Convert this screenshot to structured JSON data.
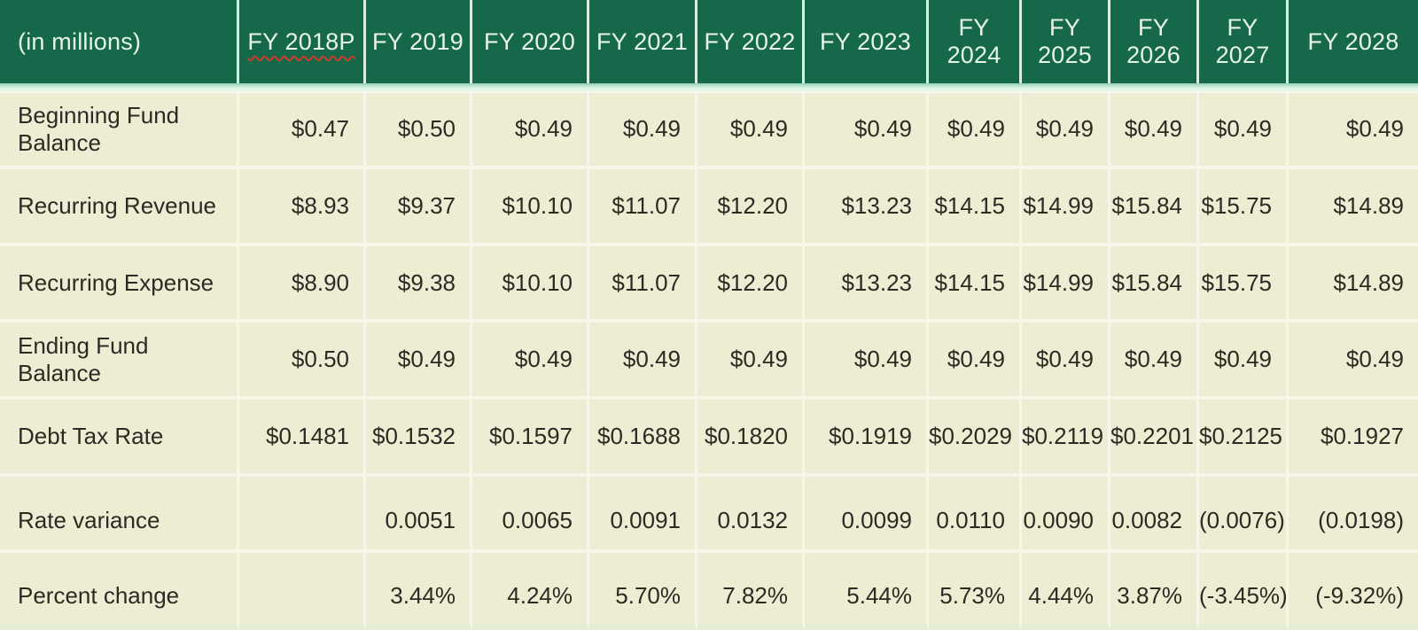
{
  "table": {
    "unit_label": "(in millions)",
    "columns": [
      {
        "label": "FY 2018P",
        "misspelled": true
      },
      {
        "label": "FY 2019"
      },
      {
        "label": "FY 2020"
      },
      {
        "label": "FY 2021"
      },
      {
        "label": "FY 2022"
      },
      {
        "label": "FY 2023"
      },
      {
        "label": "FY 2024"
      },
      {
        "label": "FY 2025"
      },
      {
        "label": "FY 2026"
      },
      {
        "label": "FY 2027"
      },
      {
        "label": "FY 2028"
      }
    ],
    "rows": [
      {
        "label": "Beginning Fund Balance",
        "values": [
          "$0.47",
          "$0.50",
          "$0.49",
          "$0.49",
          "$0.49",
          "$0.49",
          "$0.49",
          "$0.49",
          "$0.49",
          "$0.49",
          "$0.49"
        ]
      },
      {
        "label": "Recurring Revenue",
        "values": [
          "$8.93",
          "$9.37",
          "$10.10",
          "$11.07",
          "$12.20",
          "$13.23",
          "$14.15",
          "$14.99",
          "$15.84",
          "$15.75",
          "$14.89"
        ]
      },
      {
        "label": "Recurring Expense",
        "values": [
          "$8.90",
          "$9.38",
          "$10.10",
          "$11.07",
          "$12.20",
          "$13.23",
          "$14.15",
          "$14.99",
          "$15.84",
          "$15.75",
          "$14.89"
        ]
      },
      {
        "label": "Ending Fund Balance",
        "values": [
          "$0.50",
          "$0.49",
          "$0.49",
          "$0.49",
          "$0.49",
          "$0.49",
          "$0.49",
          "$0.49",
          "$0.49",
          "$0.49",
          "$0.49"
        ]
      },
      {
        "label": "Debt Tax Rate",
        "values": [
          "$0.1481",
          "$0.1532",
          "$0.1597",
          "$0.1688",
          "$0.1820",
          "$0.1919",
          "$0.2029",
          "$0.2119",
          "$0.2201",
          "$0.2125",
          "$0.1927"
        ]
      },
      {
        "label": "Rate variance",
        "values": [
          "",
          "0.0051",
          "0.0065",
          "0.0091",
          "0.0132",
          "0.0099",
          "0.0110",
          "0.0090",
          "0.0082",
          "(0.0076)",
          "(0.0198)"
        ]
      },
      {
        "label": "Percent change",
        "values": [
          "",
          "3.44%",
          "4.24%",
          "5.70%",
          "7.82%",
          "5.44%",
          "5.73%",
          "4.44%",
          "3.87%",
          "(-3.45%)",
          "(-9.32%)"
        ]
      }
    ]
  },
  "colors": {
    "header_bg": "#15694a",
    "header_text": "#e7f4ec",
    "body_bg": "#efecd4",
    "body_text": "#2b2b23",
    "divider": "#f8f6e9",
    "header_divider": "#d9efe3",
    "separator_gradient_top": "#8fd2b4",
    "bottom_strip": "#e3ecd5",
    "spellcheck_red": "#cf3a2c"
  },
  "chart_data": {
    "type": "table",
    "title": "(in millions)",
    "columns": [
      "FY 2018P",
      "FY 2019",
      "FY 2020",
      "FY 2021",
      "FY 2022",
      "FY 2023",
      "FY 2024",
      "FY 2025",
      "FY 2026",
      "FY 2027",
      "FY 2028"
    ],
    "series": [
      {
        "name": "Beginning Fund Balance",
        "unit": "$M",
        "values": [
          0.47,
          0.5,
          0.49,
          0.49,
          0.49,
          0.49,
          0.49,
          0.49,
          0.49,
          0.49,
          0.49
        ]
      },
      {
        "name": "Recurring Revenue",
        "unit": "$M",
        "values": [
          8.93,
          9.37,
          10.1,
          11.07,
          12.2,
          13.23,
          14.15,
          14.99,
          15.84,
          15.75,
          14.89
        ]
      },
      {
        "name": "Recurring Expense",
        "unit": "$M",
        "values": [
          8.9,
          9.38,
          10.1,
          11.07,
          12.2,
          13.23,
          14.15,
          14.99,
          15.84,
          15.75,
          14.89
        ]
      },
      {
        "name": "Ending Fund Balance",
        "unit": "$M",
        "values": [
          0.5,
          0.49,
          0.49,
          0.49,
          0.49,
          0.49,
          0.49,
          0.49,
          0.49,
          0.49,
          0.49
        ]
      },
      {
        "name": "Debt Tax Rate",
        "unit": "$",
        "values": [
          0.1481,
          0.1532,
          0.1597,
          0.1688,
          0.182,
          0.1919,
          0.2029,
          0.2119,
          0.2201,
          0.2125,
          0.1927
        ]
      },
      {
        "name": "Rate variance",
        "unit": "",
        "values": [
          null,
          0.0051,
          0.0065,
          0.0091,
          0.0132,
          0.0099,
          0.011,
          0.009,
          0.0082,
          -0.0076,
          -0.0198
        ]
      },
      {
        "name": "Percent change",
        "unit": "%",
        "values": [
          null,
          3.44,
          4.24,
          5.7,
          7.82,
          5.44,
          5.73,
          4.44,
          3.87,
          -3.45,
          -9.32
        ]
      }
    ],
    "layout": {
      "negative_format": "parentheses",
      "header_style": "dark-green",
      "body_style": "cream"
    }
  }
}
